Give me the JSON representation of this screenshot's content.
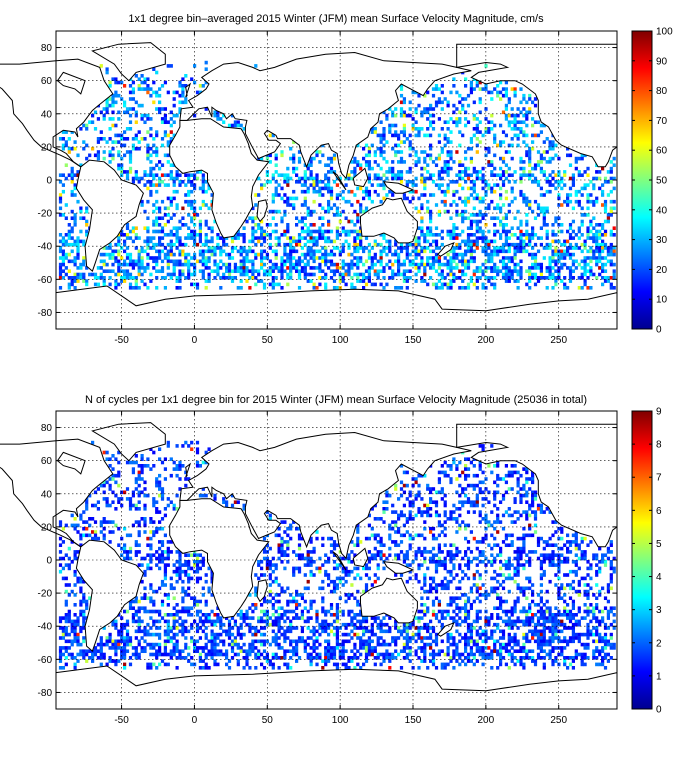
{
  "chart_data": [
    {
      "type": "heatmap",
      "title": "1x1 degree bin–averaged 2015 Winter (JFM) mean Surface Velocity Magnitude, cm/s",
      "xlim": [
        -95,
        290
      ],
      "ylim": [
        -90,
        90
      ],
      "x_ticks": [
        "-50",
        "0",
        "50",
        "100",
        "150",
        "200",
        "250"
      ],
      "y_ticks": [
        "80",
        "60",
        "40",
        "20",
        "0",
        "-20",
        "-40",
        "-60",
        "-80"
      ],
      "colorbar": {
        "range": [
          0,
          100
        ],
        "ticks": [
          "100",
          "90",
          "80",
          "70",
          "60",
          "50",
          "40",
          "30",
          "20",
          "10",
          "0"
        ]
      },
      "grid": true,
      "colormap": "jet"
    },
    {
      "type": "heatmap",
      "title": "N of cycles per 1x1 degree bin for 2015 Winter (JFM) mean Surface Velocity Magnitude (25036 in total)",
      "xlim": [
        -95,
        290
      ],
      "ylim": [
        -90,
        90
      ],
      "x_ticks": [
        "-50",
        "0",
        "50",
        "100",
        "150",
        "200",
        "250"
      ],
      "y_ticks": [
        "80",
        "60",
        "40",
        "20",
        "0",
        "-20",
        "-40",
        "-60",
        "-80"
      ],
      "colorbar": {
        "range": [
          0,
          9
        ],
        "ticks": [
          "9",
          "8",
          "7",
          "6",
          "5",
          "4",
          "3",
          "2",
          "1",
          "0"
        ]
      },
      "grid": true,
      "colormap": "jet"
    }
  ]
}
